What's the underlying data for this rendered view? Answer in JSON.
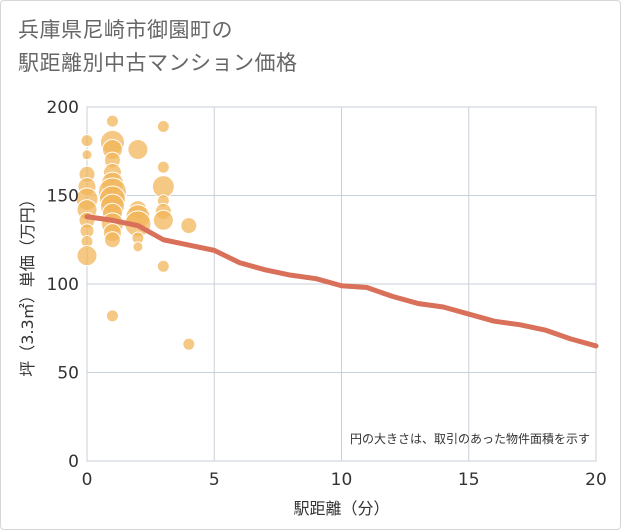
{
  "title": {
    "line1": "兵庫県尼崎市御園町の",
    "line2": "駅距離別中古マンション価格"
  },
  "chart_data": {
    "type": "scatter",
    "xlabel": "駅距離（分）",
    "ylabel": "坪（3.3㎡）単価（万円）",
    "xlim": [
      0,
      20
    ],
    "ylim": [
      0,
      200
    ],
    "xticks": [
      "0",
      "5",
      "10",
      "15",
      "20"
    ],
    "yticks": [
      "0",
      "50",
      "100",
      "150",
      "200"
    ],
    "note": "円の大きさは、取引のあった物件面積を示す",
    "grid": true,
    "colors": {
      "bubble": "#f2b65a",
      "line": "#d9705a"
    },
    "bubbles": [
      {
        "x": 0,
        "y": 181,
        "s": 6
      },
      {
        "x": 0,
        "y": 173,
        "s": 5
      },
      {
        "x": 0,
        "y": 162,
        "s": 8
      },
      {
        "x": 0,
        "y": 155,
        "s": 9
      },
      {
        "x": 0,
        "y": 148,
        "s": 11
      },
      {
        "x": 0,
        "y": 142,
        "s": 10
      },
      {
        "x": 0,
        "y": 136,
        "s": 8
      },
      {
        "x": 0,
        "y": 130,
        "s": 7
      },
      {
        "x": 0,
        "y": 124,
        "s": 6
      },
      {
        "x": 0,
        "y": 116,
        "s": 10
      },
      {
        "x": 1,
        "y": 192,
        "s": 6
      },
      {
        "x": 1,
        "y": 180,
        "s": 12
      },
      {
        "x": 1,
        "y": 176,
        "s": 10
      },
      {
        "x": 1,
        "y": 170,
        "s": 8
      },
      {
        "x": 1,
        "y": 163,
        "s": 9
      },
      {
        "x": 1,
        "y": 157,
        "s": 11
      },
      {
        "x": 1,
        "y": 152,
        "s": 14
      },
      {
        "x": 1,
        "y": 148,
        "s": 13
      },
      {
        "x": 1,
        "y": 144,
        "s": 12
      },
      {
        "x": 1,
        "y": 140,
        "s": 10
      },
      {
        "x": 1,
        "y": 134,
        "s": 11
      },
      {
        "x": 1,
        "y": 129,
        "s": 9
      },
      {
        "x": 1,
        "y": 125,
        "s": 8
      },
      {
        "x": 1,
        "y": 82,
        "s": 6
      },
      {
        "x": 2,
        "y": 176,
        "s": 10
      },
      {
        "x": 2,
        "y": 142,
        "s": 9
      },
      {
        "x": 2,
        "y": 138,
        "s": 12
      },
      {
        "x": 2,
        "y": 134,
        "s": 13
      },
      {
        "x": 2,
        "y": 126,
        "s": 6
      },
      {
        "x": 2,
        "y": 121,
        "s": 5
      },
      {
        "x": 3,
        "y": 189,
        "s": 6
      },
      {
        "x": 3,
        "y": 166,
        "s": 6
      },
      {
        "x": 3,
        "y": 155,
        "s": 11
      },
      {
        "x": 3,
        "y": 147,
        "s": 6
      },
      {
        "x": 3,
        "y": 141,
        "s": 8
      },
      {
        "x": 3,
        "y": 136,
        "s": 10
      },
      {
        "x": 3,
        "y": 110,
        "s": 6
      },
      {
        "x": 4,
        "y": 133,
        "s": 8
      },
      {
        "x": 4,
        "y": 66,
        "s": 6
      }
    ],
    "series": [
      {
        "x": [
          0,
          1,
          2,
          3,
          4,
          5,
          6,
          7,
          8,
          9,
          10,
          11,
          12,
          13,
          14,
          15,
          16,
          17,
          18,
          19,
          20
        ],
        "values": [
          138,
          136,
          133,
          125,
          122,
          119,
          112,
          108,
          105,
          103,
          99,
          98,
          93,
          89,
          87,
          83,
          79,
          77,
          74,
          69,
          65
        ]
      }
    ]
  }
}
